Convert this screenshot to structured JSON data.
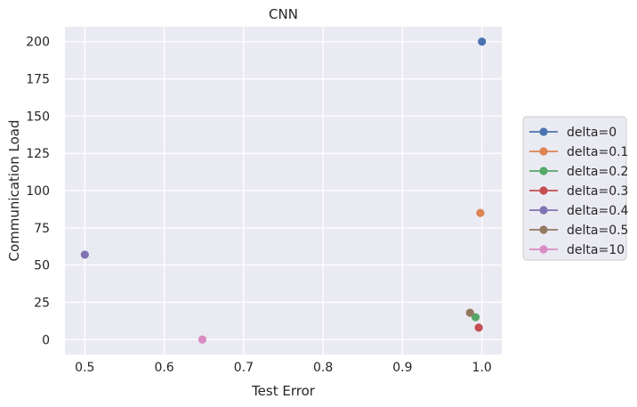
{
  "chart_data": {
    "type": "scatter",
    "title": "CNN",
    "xlabel": "Test Error",
    "ylabel": "Communication Load",
    "xlim": [
      0.475,
      1.025
    ],
    "ylim": [
      -10,
      210
    ],
    "xticks": [
      0.5,
      0.6,
      0.7,
      0.8,
      0.9,
      1.0
    ],
    "xtick_labels": [
      "0.5",
      "0.6",
      "0.7",
      "0.8",
      "0.9",
      "1.0"
    ],
    "yticks": [
      0,
      25,
      50,
      75,
      100,
      125,
      150,
      175,
      200
    ],
    "ytick_labels": [
      "0",
      "25",
      "50",
      "75",
      "100",
      "125",
      "150",
      "175",
      "200"
    ],
    "grid": true,
    "legend_position": "right-outside",
    "series": [
      {
        "name": "delta=0",
        "color": "#4c72b0",
        "x": [
          1.0
        ],
        "y": [
          200
        ]
      },
      {
        "name": "delta=0.1",
        "color": "#dd8452",
        "x": [
          0.998
        ],
        "y": [
          85
        ]
      },
      {
        "name": "delta=0.2",
        "color": "#55a868",
        "x": [
          0.992
        ],
        "y": [
          15
        ]
      },
      {
        "name": "delta=0.3",
        "color": "#c44e52",
        "x": [
          0.996
        ],
        "y": [
          8
        ]
      },
      {
        "name": "delta=0.4",
        "color": "#8172b3",
        "x": [
          0.5
        ],
        "y": [
          57
        ]
      },
      {
        "name": "delta=0.5",
        "color": "#937860",
        "x": [
          0.985
        ],
        "y": [
          18
        ]
      },
      {
        "name": "delta=10",
        "color": "#da8bc3",
        "x": [
          0.648
        ],
        "y": [
          0
        ]
      }
    ]
  }
}
